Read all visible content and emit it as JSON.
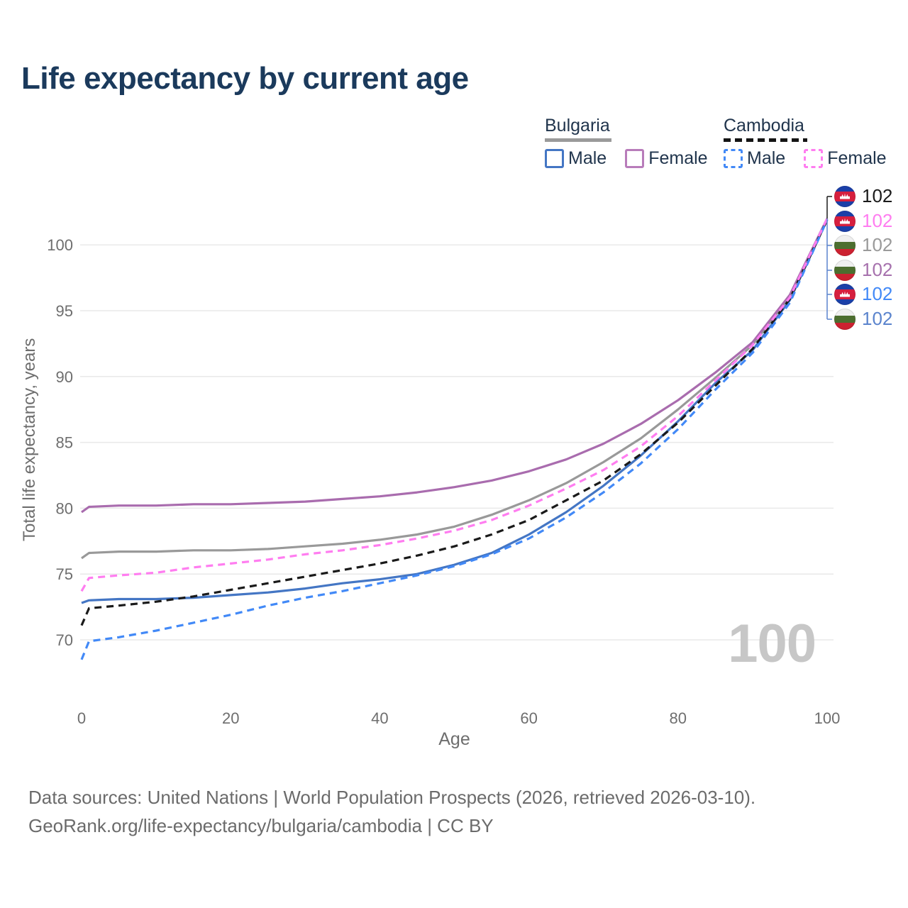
{
  "title": "Life expectancy by current age",
  "legend": {
    "bulgaria": {
      "country": "Bulgaria",
      "male": "Male",
      "female": "Female"
    },
    "cambodia": {
      "country": "Cambodia",
      "male": "Male",
      "female": "Female"
    }
  },
  "watermark": "100",
  "footer": {
    "line1": "Data sources: United Nations | World Population Prospects (2026, retrieved 2026-03-10).",
    "line2": "GeoRank.org/life-expectancy/bulgaria/cambodia | CC BY"
  },
  "chart_data": {
    "type": "line",
    "title": "Life expectancy by current age",
    "xlabel": "Age",
    "ylabel": "Total life expectancy, years",
    "x": [
      0,
      1,
      5,
      10,
      15,
      20,
      25,
      30,
      35,
      40,
      45,
      50,
      55,
      60,
      65,
      70,
      75,
      80,
      85,
      90,
      95,
      100
    ],
    "xticks": [
      0,
      20,
      40,
      60,
      80,
      100
    ],
    "yticks": [
      70,
      75,
      80,
      85,
      90,
      95,
      100
    ],
    "xlim": [
      0,
      100
    ],
    "ylim": [
      68,
      103
    ],
    "grid": "horizontal",
    "legend_position": "top-right",
    "series": [
      {
        "name": "Cambodia",
        "sex": "All",
        "style": "dashed",
        "color": "#1a1a1a",
        "label_color": "#1a1a1a",
        "flag": "cambodia-flag-icon",
        "end_label": "102",
        "values": [
          71.1,
          72.4,
          72.6,
          72.9,
          73.3,
          73.8,
          74.3,
          74.8,
          75.3,
          75.8,
          76.4,
          77.1,
          78.0,
          79.1,
          80.6,
          82.1,
          84.1,
          86.5,
          89.3,
          92.1,
          95.9,
          101.9
        ]
      },
      {
        "name": "Cambodia",
        "sex": "Female",
        "style": "dashed",
        "color": "#ff7df0",
        "label_color": "#ff7df0",
        "flag": "cambodia-flag-icon",
        "end_label": "102",
        "values": [
          73.7,
          74.7,
          74.9,
          75.1,
          75.5,
          75.8,
          76.1,
          76.5,
          76.8,
          77.2,
          77.7,
          78.3,
          79.1,
          80.2,
          81.5,
          82.9,
          84.7,
          87.0,
          89.7,
          92.4,
          96.0,
          102.0
        ]
      },
      {
        "name": "Bulgaria",
        "sex": "All",
        "style": "solid",
        "color": "#999999",
        "label_color": "#9a9a9a",
        "flag": "bulgaria-flag-icon",
        "end_label": "102",
        "values": [
          76.2,
          76.6,
          76.7,
          76.7,
          76.8,
          76.8,
          76.9,
          77.1,
          77.3,
          77.6,
          78.0,
          78.6,
          79.5,
          80.6,
          81.9,
          83.5,
          85.3,
          87.5,
          89.9,
          92.4,
          96.1,
          101.9
        ]
      },
      {
        "name": "Bulgaria",
        "sex": "Female",
        "style": "solid",
        "color": "#a96cae",
        "label_color": "#a671ad",
        "flag": "bulgaria-flag-icon",
        "end_label": "102",
        "values": [
          79.7,
          80.1,
          80.2,
          80.2,
          80.3,
          80.3,
          80.4,
          80.5,
          80.7,
          80.9,
          81.2,
          81.6,
          82.1,
          82.8,
          83.7,
          84.9,
          86.4,
          88.2,
          90.3,
          92.6,
          96.2,
          102.0
        ]
      },
      {
        "name": "Cambodia",
        "sex": "Male",
        "style": "dashed",
        "color": "#4289f7",
        "label_color": "#4289f7",
        "flag": "cambodia-flag-icon",
        "end_label": "102",
        "values": [
          68.5,
          69.9,
          70.2,
          70.7,
          71.3,
          71.9,
          72.6,
          73.2,
          73.7,
          74.3,
          74.9,
          75.6,
          76.5,
          77.7,
          79.3,
          81.2,
          83.4,
          86.0,
          89.0,
          91.8,
          95.6,
          101.9
        ]
      },
      {
        "name": "Bulgaria",
        "sex": "Male",
        "style": "solid",
        "color": "#4476c4",
        "label_color": "#5b84cd",
        "flag": "bulgaria-flag-icon",
        "end_label": "102",
        "values": [
          72.8,
          73.0,
          73.1,
          73.1,
          73.2,
          73.4,
          73.6,
          73.9,
          74.3,
          74.6,
          75.0,
          75.7,
          76.6,
          78.0,
          79.7,
          81.7,
          84.0,
          86.6,
          89.5,
          92.0,
          95.8,
          101.9
        ]
      }
    ]
  }
}
